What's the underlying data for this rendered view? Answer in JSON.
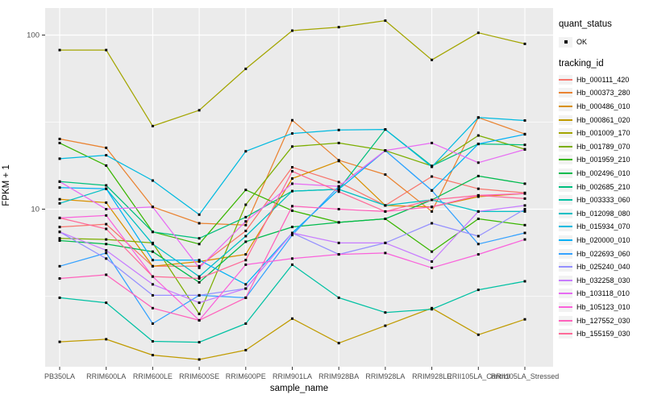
{
  "chart_data": {
    "type": "line",
    "title": "",
    "xlabel": "sample_name",
    "ylabel": "FPKM + 1",
    "y_scale": "log10",
    "ylim": [
      1.2,
      145
    ],
    "y_major_ticks": [
      100,
      10
    ],
    "y_minor_gridlines": [
      31.6,
      3.16
    ],
    "grid": "on",
    "marker_shape": "square",
    "marker_color": "#000000",
    "panel_bg": "#EBEBEB",
    "grid_color": "#FFFFFF",
    "key_bg": "#F2F2F2",
    "tick_text_color": "#4D4D4D",
    "categories": [
      "PB350LA",
      "RRIM600LA",
      "RRIM600LE",
      "RRIM600SE",
      "RRIM600PE",
      "RRIM901LA",
      "RRIM928BA",
      "RRIM928LA",
      "RRIM928LE",
      "RRII105LA_Control",
      "RRII105LA_Stressed"
    ],
    "legend": {
      "position": "right",
      "quant_status_title": "quant_status",
      "ok_label": "OK",
      "tracking_id_title": "tracking_id"
    },
    "series": [
      {
        "name": "Hb_000111_420",
        "color": "#F8766D",
        "values": [
          7.9,
          8.2,
          4.7,
          4.7,
          7.5,
          17.4,
          14.3,
          10.5,
          15.4,
          13.1,
          12.4
        ]
      },
      {
        "name": "Hb_000373_280",
        "color": "#EA8331",
        "values": [
          25.3,
          22.5,
          10.3,
          8.3,
          8.1,
          32.4,
          19.1,
          15.8,
          9.7,
          33.6,
          27.0
        ]
      },
      {
        "name": "Hb_000486_010",
        "color": "#D89000",
        "values": [
          11.4,
          10.9,
          4.7,
          5.0,
          5.5,
          15.0,
          18.9,
          10.5,
          10.3,
          11.8,
          12.3
        ]
      },
      {
        "name": "Hb_000861_020",
        "color": "#C09B00",
        "values": [
          1.73,
          1.79,
          1.45,
          1.37,
          1.55,
          2.35,
          1.7,
          2.14,
          2.7,
          1.9,
          2.33
        ]
      },
      {
        "name": "Hb_001009_170",
        "color": "#A3A500",
        "values": [
          82,
          82,
          30,
          37,
          64,
          106,
          111,
          121,
          72,
          103,
          89
        ]
      },
      {
        "name": "Hb_001789_070",
        "color": "#7CAE00",
        "values": [
          6.8,
          6.7,
          6.4,
          2.5,
          10.6,
          22.9,
          24.0,
          21.7,
          17.7,
          26.5,
          22.1
        ]
      },
      {
        "name": "Hb_001959_210",
        "color": "#39B600",
        "values": [
          24.0,
          17.8,
          7.4,
          6.3,
          12.9,
          9.8,
          8.4,
          8.8,
          5.7,
          8.8,
          8.1
        ]
      },
      {
        "name": "Hb_002496_010",
        "color": "#00BB4E",
        "values": [
          6.6,
          6.3,
          5.7,
          3.8,
          6.5,
          7.9,
          8.4,
          8.8,
          11.3,
          15.5,
          14.0
        ]
      },
      {
        "name": "Hb_002685_210",
        "color": "#00BF7D",
        "values": [
          14.4,
          13.7,
          7.4,
          6.8,
          9.0,
          12.7,
          13.0,
          28.7,
          17.7,
          23.7,
          23.4
        ]
      },
      {
        "name": "Hb_003333_060",
        "color": "#00C1A3",
        "values": [
          3.1,
          2.9,
          1.74,
          1.72,
          2.2,
          4.8,
          3.1,
          2.55,
          2.66,
          3.44,
          3.85
        ]
      },
      {
        "name": "Hb_012098_080",
        "color": "#00BFC4",
        "values": [
          10.8,
          13.1,
          6.3,
          4.1,
          7.0,
          12.7,
          13.0,
          10.5,
          11.3,
          9.7,
          9.7
        ]
      },
      {
        "name": "Hb_015934_070",
        "color": "#00BAE0",
        "values": [
          19.5,
          20.4,
          14.6,
          9.3,
          21.5,
          27.2,
          28.5,
          28.7,
          17.5,
          33.6,
          32.3
        ]
      },
      {
        "name": "Hb_020000_010",
        "color": "#00B0F6",
        "values": [
          13.3,
          13.1,
          5.1,
          5.1,
          3.7,
          7.3,
          13.0,
          21.7,
          12.8,
          23.7,
          26.9
        ]
      },
      {
        "name": "Hb_022693_060",
        "color": "#35A2FF",
        "values": [
          4.7,
          5.6,
          2.2,
          3.2,
          3.1,
          7.1,
          13.5,
          21.7,
          12.8,
          6.3,
          7.3
        ]
      },
      {
        "name": "Hb_025240_040",
        "color": "#9590FF",
        "values": [
          7.4,
          5.2,
          3.2,
          3.2,
          3.5,
          7.3,
          5.5,
          6.4,
          8.3,
          7.0,
          10.0
        ]
      },
      {
        "name": "Hb_032258_030",
        "color": "#C77CFF",
        "values": [
          7.4,
          5.8,
          3.7,
          2.9,
          3.5,
          7.3,
          6.4,
          6.4,
          5.0,
          9.7,
          10.5
        ]
      },
      {
        "name": "Hb_103118_010",
        "color": "#E76BF3",
        "values": [
          14.4,
          10.0,
          10.3,
          4.6,
          8.5,
          14.0,
          13.5,
          21.7,
          24.0,
          18.5,
          22.0
        ]
      },
      {
        "name": "Hb_105123_010",
        "color": "#FA62DB",
        "values": [
          8.9,
          9.2,
          4.1,
          2.3,
          4.8,
          5.2,
          5.5,
          5.6,
          4.6,
          5.5,
          6.7
        ]
      },
      {
        "name": "Hb_127552_030",
        "color": "#FF62BC",
        "values": [
          4.0,
          4.2,
          2.7,
          2.3,
          3.1,
          10.4,
          10.0,
          9.7,
          10.3,
          12.0,
          12.3
        ]
      },
      {
        "name": "Hb_155159_030",
        "color": "#FF6A98",
        "values": [
          8.9,
          7.7,
          4.1,
          4.0,
          5.1,
          16.5,
          12.6,
          9.7,
          11.3,
          12.0,
          11.5
        ]
      }
    ]
  }
}
